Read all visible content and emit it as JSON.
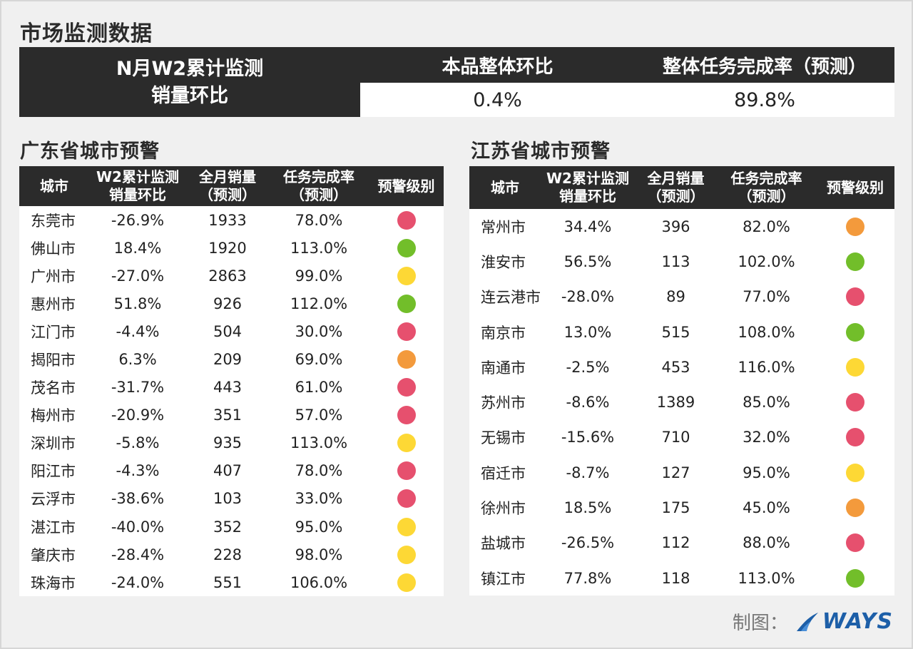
{
  "page_title": "市场监测数据",
  "summary": {
    "left_label": "N月W2累计监测\n销量环比",
    "columns": [
      {
        "header": "本品整体环比",
        "value": "0.4%"
      },
      {
        "header": "整体任务完成率（预测）",
        "value": "89.8%"
      }
    ]
  },
  "colors": {
    "red": "#e6506e",
    "green": "#72be2a",
    "yellow": "#fdd835",
    "orange": "#f39a3c",
    "header_bg": "#2b2b2b"
  },
  "guangdong": {
    "title": "广东省城市预警",
    "headers": [
      "城市",
      "W2累计监测\n销量环比",
      "全月销量\n（预测）",
      "任务完成率\n（预测）",
      "预警级别"
    ],
    "rows": [
      {
        "city": "东莞市",
        "ratio": "-26.9%",
        "sales": "1933",
        "rate": "78.0%",
        "level": "red"
      },
      {
        "city": "佛山市",
        "ratio": "18.4%",
        "sales": "1920",
        "rate": "113.0%",
        "level": "green"
      },
      {
        "city": "广州市",
        "ratio": "-27.0%",
        "sales": "2863",
        "rate": "99.0%",
        "level": "yellow"
      },
      {
        "city": "惠州市",
        "ratio": "51.8%",
        "sales": "926",
        "rate": "112.0%",
        "level": "green"
      },
      {
        "city": "江门市",
        "ratio": "-4.4%",
        "sales": "504",
        "rate": "30.0%",
        "level": "red"
      },
      {
        "city": "揭阳市",
        "ratio": "6.3%",
        "sales": "209",
        "rate": "69.0%",
        "level": "orange"
      },
      {
        "city": "茂名市",
        "ratio": "-31.7%",
        "sales": "443",
        "rate": "61.0%",
        "level": "red"
      },
      {
        "city": "梅州市",
        "ratio": "-20.9%",
        "sales": "351",
        "rate": "57.0%",
        "level": "red"
      },
      {
        "city": "深圳市",
        "ratio": "-5.8%",
        "sales": "935",
        "rate": "113.0%",
        "level": "yellow"
      },
      {
        "city": "阳江市",
        "ratio": "-4.3%",
        "sales": "407",
        "rate": "78.0%",
        "level": "red"
      },
      {
        "city": "云浮市",
        "ratio": "-38.6%",
        "sales": "103",
        "rate": "33.0%",
        "level": "red"
      },
      {
        "city": "湛江市",
        "ratio": "-40.0%",
        "sales": "352",
        "rate": "95.0%",
        "level": "yellow"
      },
      {
        "city": "肇庆市",
        "ratio": "-28.4%",
        "sales": "228",
        "rate": "98.0%",
        "level": "yellow"
      },
      {
        "city": "珠海市",
        "ratio": "-24.0%",
        "sales": "551",
        "rate": "106.0%",
        "level": "yellow"
      }
    ]
  },
  "jiangsu": {
    "title": "江苏省城市预警",
    "headers": [
      "城市",
      "W2累计监测\n销量环比",
      "全月销量\n（预测）",
      "任务完成率\n（预测）",
      "预警级别"
    ],
    "rows": [
      {
        "city": "常州市",
        "ratio": "34.4%",
        "sales": "396",
        "rate": "82.0%",
        "level": "orange"
      },
      {
        "city": "淮安市",
        "ratio": "56.5%",
        "sales": "113",
        "rate": "102.0%",
        "level": "green"
      },
      {
        "city": "连云港市",
        "ratio": "-28.0%",
        "sales": "89",
        "rate": "77.0%",
        "level": "red"
      },
      {
        "city": "南京市",
        "ratio": "13.0%",
        "sales": "515",
        "rate": "108.0%",
        "level": "green"
      },
      {
        "city": "南通市",
        "ratio": "-2.5%",
        "sales": "453",
        "rate": "116.0%",
        "level": "yellow"
      },
      {
        "city": "苏州市",
        "ratio": "-8.6%",
        "sales": "1389",
        "rate": "85.0%",
        "level": "red"
      },
      {
        "city": "无锡市",
        "ratio": "-15.6%",
        "sales": "710",
        "rate": "32.0%",
        "level": "red"
      },
      {
        "city": "宿迁市",
        "ratio": "-8.7%",
        "sales": "127",
        "rate": "95.0%",
        "level": "yellow"
      },
      {
        "city": "徐州市",
        "ratio": "18.5%",
        "sales": "175",
        "rate": "45.0%",
        "level": "orange"
      },
      {
        "city": "盐城市",
        "ratio": "-26.5%",
        "sales": "112",
        "rate": "88.0%",
        "level": "red"
      },
      {
        "city": "镇江市",
        "ratio": "77.8%",
        "sales": "118",
        "rate": "113.0%",
        "level": "green"
      }
    ]
  },
  "footer": {
    "credit": "制图：",
    "logo_text": "WAYS"
  }
}
